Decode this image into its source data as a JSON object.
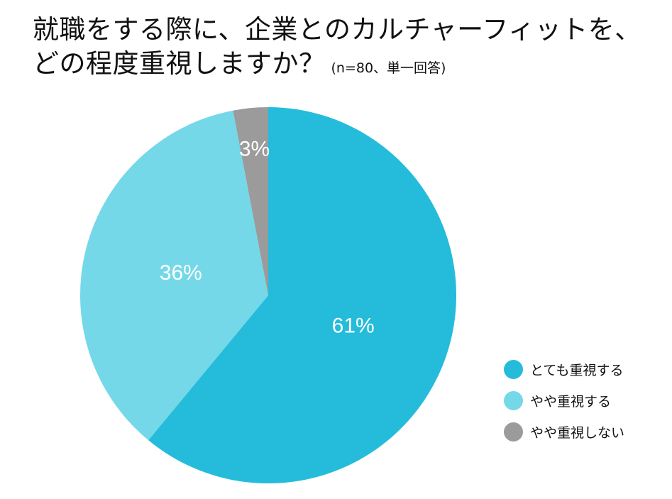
{
  "chart_data": {
    "type": "pie",
    "title": "就職をする際に、企業とのカルチャーフィットを、",
    "title_line2": "どの程度重視しますか？",
    "subtitle": "(n=80、単一回答)",
    "slices": [
      {
        "label": "とても重視する",
        "value": 61,
        "value_label": "61%",
        "color": "#25bcdb"
      },
      {
        "label": "やや重視する",
        "value": 36,
        "value_label": "36%",
        "color": "#74d8e9"
      },
      {
        "label": "やや重視しない",
        "value": 3,
        "value_label": "3%",
        "color": "#9b9b9b"
      }
    ],
    "start": "12 o'clock",
    "direction": "clockwise",
    "legend_position": "bottom-right"
  }
}
